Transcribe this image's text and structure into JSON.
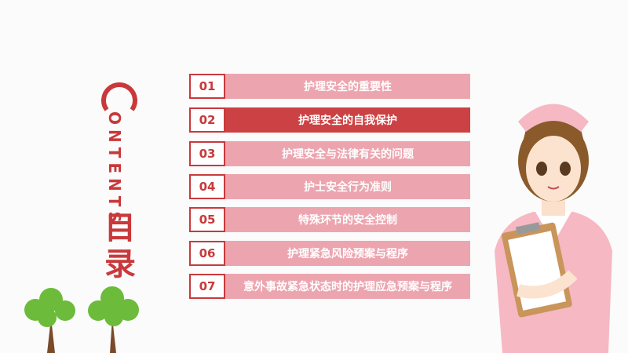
{
  "heading": {
    "letter": "C",
    "rest": "ONTENTS",
    "title_line1": "目",
    "title_line2": "录"
  },
  "items": [
    {
      "num": "01",
      "label": "护理安全的重要性",
      "active": false
    },
    {
      "num": "02",
      "label": "护理安全的自我保护",
      "active": true
    },
    {
      "num": "03",
      "label": "护理安全与法律有关的问题",
      "active": false
    },
    {
      "num": "04",
      "label": "护士安全行为准则",
      "active": false
    },
    {
      "num": "05",
      "label": "特殊环节的安全控制",
      "active": false
    },
    {
      "num": "06",
      "label": "护理紧急风险预案与程序",
      "active": false
    },
    {
      "num": "07",
      "label": "意外事故紧急状态时的护理应急预案与程序",
      "active": false
    }
  ],
  "colors": {
    "accent": "#c9393b",
    "bar": "#eca5af",
    "active_bar": "#cc4143"
  }
}
